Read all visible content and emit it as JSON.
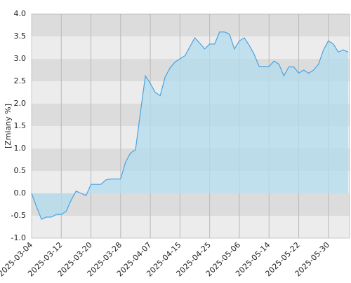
{
  "chart_data": {
    "type": "area",
    "y_label": "[Zmiany %]",
    "categories": [
      "2025-03-04",
      null,
      null,
      null,
      null,
      null,
      "2025-03-12",
      null,
      null,
      null,
      null,
      null,
      "2025-03-20",
      null,
      null,
      null,
      null,
      null,
      "2025-03-28",
      null,
      null,
      null,
      null,
      null,
      "2025-04-07",
      null,
      null,
      null,
      null,
      null,
      "2025-04-15",
      null,
      null,
      null,
      null,
      null,
      "2025-04-25",
      null,
      null,
      null,
      null,
      null,
      "2025-05-06",
      null,
      null,
      null,
      null,
      null,
      "2025-05-14",
      null,
      null,
      null,
      null,
      null,
      "2025-05-22",
      null,
      null,
      null,
      null,
      null,
      "2025-05-30",
      null,
      null,
      null,
      null
    ],
    "values": [
      0.0,
      -0.3,
      -0.58,
      -0.53,
      -0.53,
      -0.47,
      -0.47,
      -0.4,
      -0.15,
      0.05,
      0.0,
      -0.05,
      0.2,
      0.2,
      0.2,
      0.3,
      0.32,
      0.32,
      0.32,
      0.7,
      0.9,
      0.97,
      1.8,
      2.62,
      2.45,
      2.25,
      2.18,
      2.6,
      2.8,
      2.93,
      3.0,
      3.07,
      3.27,
      3.47,
      3.35,
      3.22,
      3.33,
      3.33,
      3.6,
      3.6,
      3.55,
      3.22,
      3.4,
      3.47,
      3.3,
      3.1,
      2.83,
      2.83,
      2.83,
      2.95,
      2.88,
      2.62,
      2.82,
      2.82,
      2.68,
      2.75,
      2.68,
      2.75,
      2.88,
      3.2,
      3.4,
      3.33,
      3.15,
      3.2,
      3.15
    ],
    "color": "#4aa3df",
    "fill": "#b3dcef",
    "ylim": [
      -1,
      4
    ],
    "yticks": [
      {
        "value": -1,
        "label": "-1.0"
      },
      -0.5,
      {
        "value": 0,
        "label": "0.0"
      },
      0.5,
      {
        "value": 1,
        "label": "1.0"
      },
      1.5,
      {
        "value": 2,
        "label": "2.0"
      },
      2.5,
      {
        "value": 3,
        "label": "3.0"
      },
      3.5,
      {
        "value": 4,
        "label": "4.0"
      }
    ],
    "grid": true
  }
}
